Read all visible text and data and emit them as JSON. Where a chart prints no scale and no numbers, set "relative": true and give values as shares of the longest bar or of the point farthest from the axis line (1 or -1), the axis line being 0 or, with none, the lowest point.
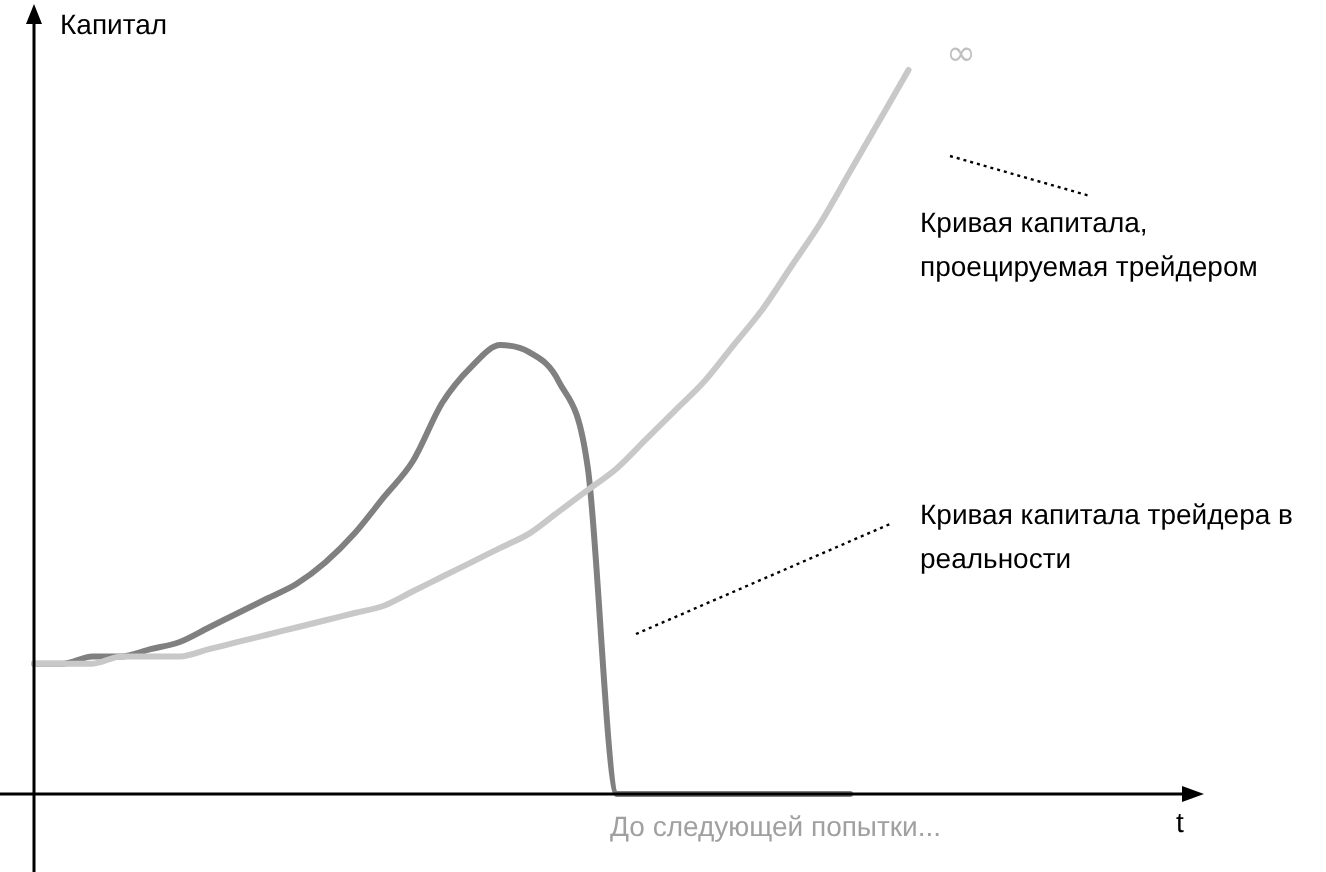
{
  "chart_data": {
    "type": "line",
    "relative": true,
    "ylabel": "Капитал",
    "xlabel": "t",
    "annotations": [
      "∞",
      "До следующей попытки..."
    ],
    "categories": [
      null,
      null,
      null,
      null,
      null,
      null,
      null,
      null,
      null,
      null,
      null,
      null,
      null,
      null,
      null,
      null,
      null,
      null,
      null,
      null,
      null,
      null,
      null,
      null,
      null,
      null,
      null,
      null,
      null,
      null,
      null,
      null,
      null,
      null,
      null,
      null,
      null,
      null,
      null,
      null,
      null
    ],
    "series": [
      {
        "name": "Кривая капитала, проецируемая трейдером",
        "color": "#c8c8c8",
        "values": [
          0.18,
          0.18,
          0.18,
          0.19,
          0.19,
          0.19,
          0.2,
          0.21,
          0.22,
          0.23,
          0.24,
          0.25,
          0.26,
          0.28,
          0.3,
          0.32,
          0.34,
          0.36,
          0.39,
          0.42,
          0.45,
          0.49,
          0.53,
          0.57,
          0.62,
          0.67,
          0.73,
          0.79,
          0.86,
          0.93,
          1,
          null,
          null,
          null,
          null,
          null,
          null,
          null,
          null,
          null,
          null
        ]
      },
      {
        "name": "Кривая капитала трейдера в реальности",
        "color": "#808080",
        "values": [
          0.18,
          0.18,
          0.19,
          0.19,
          0.2,
          0.21,
          0.23,
          0.25,
          0.27,
          0.29,
          0.32,
          0.36,
          0.41,
          0.46,
          0.54,
          0.59,
          0.62,
          0.61,
          0.57,
          0.45,
          0,
          0,
          0,
          0,
          0,
          0,
          0,
          0,
          0,
          null,
          null,
          null,
          null,
          null,
          null,
          null,
          null,
          null,
          null,
          null,
          null
        ]
      }
    ]
  }
}
